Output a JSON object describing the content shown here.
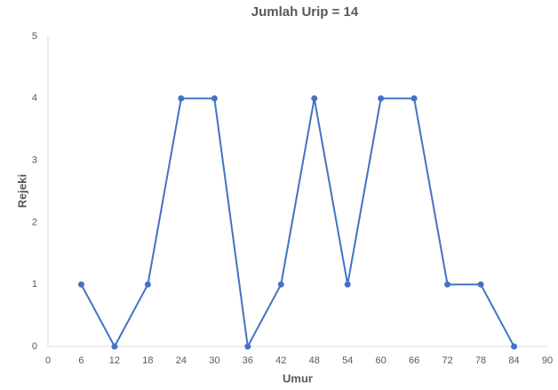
{
  "chart_data": {
    "type": "line",
    "title": "Jumlah Urip = 14",
    "x_label": "Umur",
    "y_label": "Rejeki",
    "x": [
      6,
      12,
      18,
      24,
      30,
      36,
      42,
      48,
      54,
      60,
      66,
      72,
      78,
      84
    ],
    "values": [
      1,
      0,
      1,
      4,
      4,
      0,
      1,
      4,
      1,
      4,
      4,
      1,
      1,
      0
    ],
    "color": "#4472c4",
    "xlim": [
      0,
      90
    ],
    "xticks": [
      0,
      6,
      12,
      18,
      24,
      30,
      36,
      42,
      48,
      54,
      60,
      66,
      72,
      78,
      84,
      90
    ],
    "ylim": [
      0,
      5
    ],
    "yticks": [
      0,
      1,
      2,
      3,
      4,
      5
    ],
    "grid": false
  }
}
